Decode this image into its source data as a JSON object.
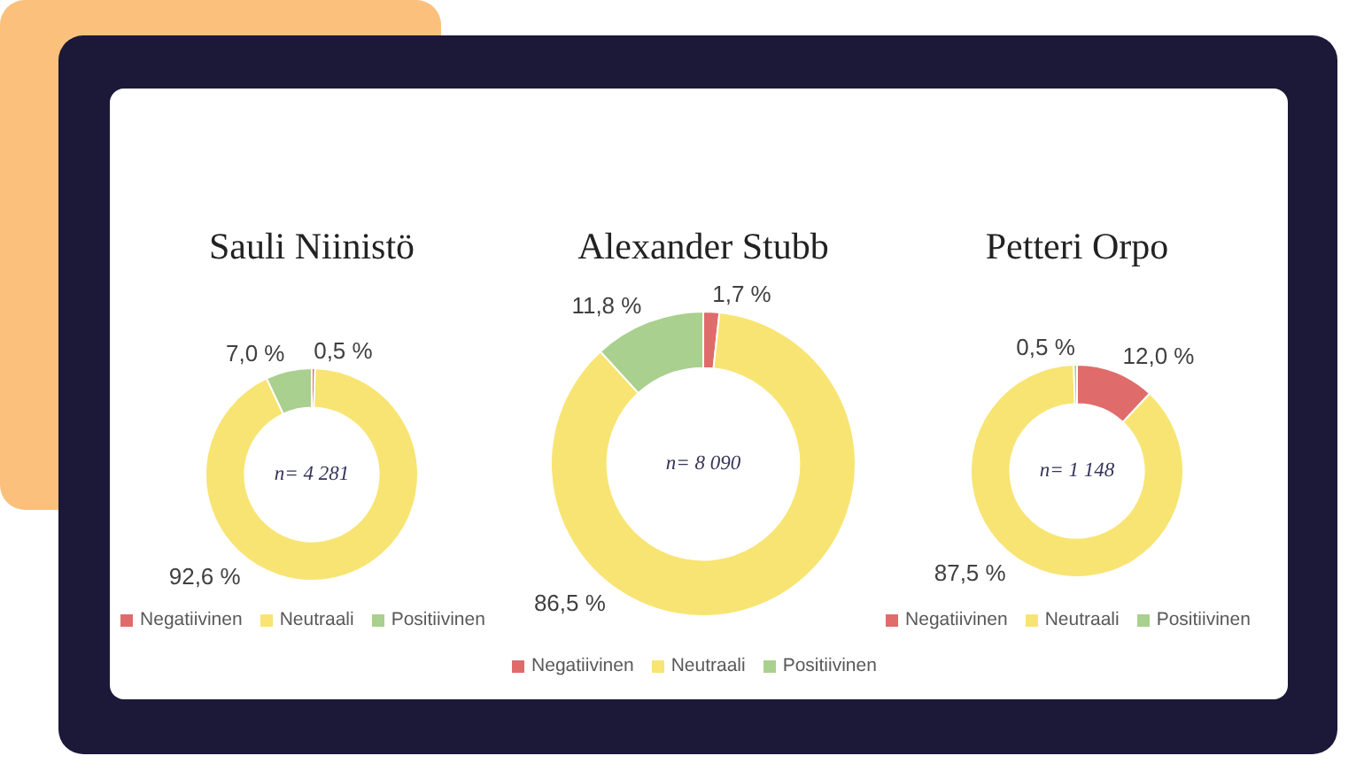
{
  "chart_data": [
    {
      "type": "donut",
      "title": "Sauli Niinistö",
      "categories": [
        "Negatiivinen",
        "Neutraali",
        "Positiivinen"
      ],
      "values": [
        0.5,
        92.6,
        7.0
      ],
      "colors": [
        "#e06b6b",
        "#f8e472",
        "#a9d08e"
      ],
      "value_labels": [
        "0,5 %",
        "92,6 %",
        "7,0 %"
      ],
      "annotations": [
        "n= 4 281"
      ],
      "legend": "bottom"
    },
    {
      "type": "donut",
      "title": "Alexander Stubb",
      "categories": [
        "Negatiivinen",
        "Neutraali",
        "Positiivinen"
      ],
      "values": [
        1.7,
        86.5,
        11.8
      ],
      "colors": [
        "#e06b6b",
        "#f8e472",
        "#a9d08e"
      ],
      "value_labels": [
        "1,7 %",
        "86,5 %",
        "11,8 %"
      ],
      "annotations": [
        "n= 8 090"
      ],
      "legend": "bottom"
    },
    {
      "type": "donut",
      "title": "Petteri Orpo",
      "categories": [
        "Negatiivinen",
        "Neutraali",
        "Positiivinen"
      ],
      "values": [
        12.0,
        87.5,
        0.5
      ],
      "colors": [
        "#e06b6b",
        "#f8e472",
        "#a9d08e"
      ],
      "value_labels": [
        "12,0 %",
        "87,5 %",
        "0,5 %"
      ],
      "annotations": [
        "n= 1 148"
      ],
      "legend": "bottom"
    }
  ]
}
